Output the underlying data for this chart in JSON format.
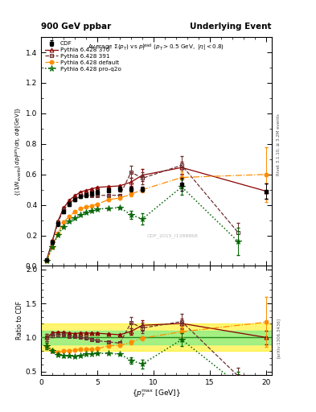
{
  "title_left": "900 GeV ppbar",
  "title_right": "Underlying Event",
  "watermark": "CDF_2015_I1388868",
  "right_label_top": "Rivet 3.1.10, ≥ 3.2M events",
  "right_label_bot": "[arXiv:1306.3436]",
  "ylabel_ratio": "Ratio to CDF",
  "xlabel": "{p_{T}^{max} [GeV]}",
  "cdf_x": [
    0.5,
    1.0,
    1.5,
    2.0,
    2.5,
    3.0,
    3.5,
    4.0,
    4.5,
    5.0,
    6.0,
    7.0,
    8.0,
    9.0,
    12.5,
    20.0
  ],
  "cdf_y": [
    0.04,
    0.155,
    0.275,
    0.355,
    0.405,
    0.435,
    0.455,
    0.465,
    0.475,
    0.485,
    0.495,
    0.505,
    0.505,
    0.505,
    0.535,
    0.49
  ],
  "cdf_ye": [
    0.005,
    0.01,
    0.012,
    0.012,
    0.012,
    0.012,
    0.012,
    0.012,
    0.012,
    0.012,
    0.015,
    0.015,
    0.015,
    0.015,
    0.04,
    0.05
  ],
  "py370_x": [
    0.5,
    1.0,
    1.5,
    2.0,
    2.5,
    3.0,
    3.5,
    4.0,
    4.5,
    5.0,
    6.0,
    7.0,
    8.0,
    9.0,
    12.5,
    20.0
  ],
  "py370_y": [
    0.04,
    0.165,
    0.295,
    0.38,
    0.43,
    0.46,
    0.485,
    0.495,
    0.505,
    0.515,
    0.52,
    0.525,
    0.55,
    0.595,
    0.645,
    0.49
  ],
  "py370_ye": [
    0.002,
    0.004,
    0.005,
    0.005,
    0.005,
    0.005,
    0.005,
    0.005,
    0.005,
    0.005,
    0.006,
    0.006,
    0.025,
    0.04,
    0.04,
    0.05
  ],
  "py391_x": [
    0.5,
    1.0,
    1.5,
    2.0,
    2.5,
    3.0,
    3.5,
    4.0,
    4.5,
    5.0,
    6.0,
    7.0,
    8.0,
    9.0,
    12.5,
    17.5
  ],
  "py391_y": [
    0.04,
    0.16,
    0.285,
    0.37,
    0.41,
    0.44,
    0.455,
    0.46,
    0.462,
    0.462,
    0.463,
    0.463,
    0.615,
    0.575,
    0.66,
    0.22
  ],
  "py391_ye": [
    0.002,
    0.004,
    0.005,
    0.005,
    0.005,
    0.005,
    0.005,
    0.005,
    0.005,
    0.005,
    0.006,
    0.006,
    0.04,
    0.04,
    0.06,
    0.06
  ],
  "pydef_x": [
    0.5,
    1.0,
    1.5,
    2.0,
    2.5,
    3.0,
    3.5,
    4.0,
    4.5,
    5.0,
    6.0,
    7.0,
    8.0,
    9.0,
    12.5,
    20.0
  ],
  "pydef_y": [
    0.035,
    0.125,
    0.215,
    0.285,
    0.325,
    0.355,
    0.375,
    0.385,
    0.395,
    0.405,
    0.435,
    0.445,
    0.47,
    0.5,
    0.58,
    0.6
  ],
  "pydef_ye": [
    0.002,
    0.004,
    0.005,
    0.005,
    0.005,
    0.005,
    0.005,
    0.005,
    0.005,
    0.005,
    0.006,
    0.006,
    0.015,
    0.015,
    0.04,
    0.18
  ],
  "pyq2o_x": [
    0.5,
    1.0,
    1.5,
    2.0,
    2.5,
    3.0,
    3.5,
    4.0,
    4.5,
    5.0,
    6.0,
    7.0,
    8.0,
    9.0,
    12.5,
    17.5
  ],
  "pyq2o_y": [
    0.035,
    0.125,
    0.205,
    0.258,
    0.295,
    0.315,
    0.335,
    0.352,
    0.362,
    0.372,
    0.378,
    0.382,
    0.335,
    0.308,
    0.518,
    0.16
  ],
  "pyq2o_ye": [
    0.002,
    0.004,
    0.005,
    0.005,
    0.005,
    0.005,
    0.005,
    0.005,
    0.005,
    0.005,
    0.006,
    0.006,
    0.025,
    0.035,
    0.05,
    0.09
  ],
  "col_cdf": "#000000",
  "col_370": "#8B0000",
  "col_391": "#6B3030",
  "col_def": "#FF8C00",
  "col_q2o": "#006400",
  "xlim": [
    0.0,
    20.5
  ],
  "ylim_main": [
    0.0,
    1.5
  ],
  "ylim_ratio": [
    0.45,
    2.05
  ],
  "yticks_main": [
    0.0,
    0.2,
    0.4,
    0.6,
    0.8,
    1.0,
    1.2,
    1.4
  ],
  "yticks_ratio": [
    0.5,
    1.0,
    1.5,
    2.0
  ],
  "xticks": [
    0,
    5,
    10,
    15,
    20
  ],
  "green_band": [
    0.9,
    1.1
  ],
  "yellow_band": [
    0.8,
    1.2
  ]
}
